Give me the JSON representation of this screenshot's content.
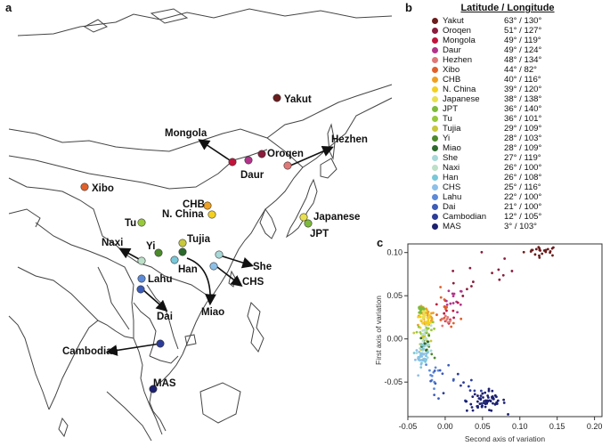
{
  "panels": {
    "a": "a",
    "b": "b",
    "c": "c"
  },
  "map": {
    "labels": {
      "yakut": "Yakut",
      "mongola": "Mongola",
      "daur": "Daur",
      "oroqen": "Oroqen",
      "hezhen": "Hezhen",
      "xibo": "Xibo",
      "chb": "CHB",
      "nchina": "N. China",
      "japanese": "Japanese",
      "jpt": "JPT",
      "tu": "Tu",
      "tujia": "Tujia",
      "yi": "Yi",
      "naxi": "Naxi",
      "han": "Han",
      "she": "She",
      "chs": "CHS",
      "lahu": "Lahu",
      "miao": "Miao",
      "dai": "Dai",
      "cambodian": "Cambodian",
      "mas": "MAS"
    }
  },
  "legend": {
    "title": "Latitude / Longitude",
    "rows": [
      {
        "name": "Yakut",
        "coord": "63° / 130°",
        "color": "#6b1c1c"
      },
      {
        "name": "Oroqen",
        "coord": "51° / 127°",
        "color": "#8a1c3c"
      },
      {
        "name": "Mongola",
        "coord": "49° / 119°",
        "color": "#c0143c"
      },
      {
        "name": "Daur",
        "coord": "49° / 124°",
        "color": "#b2348a"
      },
      {
        "name": "Hezhen",
        "coord": "48° / 134°",
        "color": "#e07878"
      },
      {
        "name": "Xibo",
        "coord": "44° / 82°",
        "color": "#e0602c"
      },
      {
        "name": "CHB",
        "coord": "40° / 116°",
        "color": "#f0a020"
      },
      {
        "name": "N. China",
        "coord": "39° / 120°",
        "color": "#f4d020"
      },
      {
        "name": "Japanese",
        "coord": "38° / 138°",
        "color": "#e8e050"
      },
      {
        "name": "JPT",
        "coord": "36° / 140°",
        "color": "#7cba3c"
      },
      {
        "name": "Tu",
        "coord": "36° / 101°",
        "color": "#98c83c"
      },
      {
        "name": "Tujia",
        "coord": "29° / 109°",
        "color": "#c8c83c"
      },
      {
        "name": "Yi",
        "coord": "28° / 103°",
        "color": "#4c8a2c"
      },
      {
        "name": "Miao",
        "coord": "28° / 109°",
        "color": "#2c6a2c"
      },
      {
        "name": "She",
        "coord": "27° / 119°",
        "color": "#a8d8d8"
      },
      {
        "name": "Naxi",
        "coord": "26° / 100°",
        "color": "#bce0c8"
      },
      {
        "name": "Han",
        "coord": "26° / 108°",
        "color": "#78c8d8"
      },
      {
        "name": "CHS",
        "coord": "25° / 116°",
        "color": "#8cc0e8"
      },
      {
        "name": "Lahu",
        "coord": "22° / 100°",
        "color": "#5c8ad8"
      },
      {
        "name": "Dai",
        "coord": "21° / 100°",
        "color": "#3c5cb8"
      },
      {
        "name": "Cambodian",
        "coord": "12° / 105°",
        "color": "#2c3c98"
      },
      {
        "name": "MAS",
        "coord": "3° / 103°",
        "color": "#1c2070"
      }
    ]
  },
  "chart_data": {
    "type": "scatter",
    "xlabel": "Second axis of variation",
    "ylabel": "First axis of variation",
    "xlim": [
      -0.05,
      0.21
    ],
    "ylim": [
      -0.09,
      0.11
    ],
    "xticks": [
      "-0.05",
      "0.00",
      "0.05",
      "0.10",
      "0.15",
      "0.20"
    ],
    "yticks": [
      "0.10",
      "0.05",
      "0.00",
      "-0.05"
    ],
    "clusters": [
      {
        "group": "Yakut",
        "color": "#6b1c1c",
        "cx": 0.13,
        "cy": 0.102,
        "sx": 0.012,
        "sy": 0.003,
        "n": 22
      },
      {
        "group": "Oroqen",
        "color": "#8a1c3c",
        "cx": 0.06,
        "cy": 0.07,
        "sx": 0.03,
        "sy": 0.015,
        "n": 14
      },
      {
        "group": "Daur",
        "color": "#b2348a",
        "cx": 0.012,
        "cy": 0.045,
        "sx": 0.006,
        "sy": 0.007,
        "n": 14
      },
      {
        "group": "Mongola",
        "color": "#c0143c",
        "cx": 0.005,
        "cy": 0.03,
        "sx": 0.008,
        "sy": 0.008,
        "n": 10
      },
      {
        "group": "Hezhen",
        "color": "#e07878",
        "cx": 0.0,
        "cy": 0.02,
        "sx": 0.004,
        "sy": 0.004,
        "n": 10
      },
      {
        "group": "Xibo",
        "color": "#e0602c",
        "cx": 0.0,
        "cy": 0.03,
        "sx": 0.01,
        "sy": 0.012,
        "n": 12
      },
      {
        "group": "CHB",
        "color": "#f0a020",
        "cx": -0.025,
        "cy": 0.025,
        "sx": 0.006,
        "sy": 0.006,
        "n": 28
      },
      {
        "group": "N. China",
        "color": "#f4d020",
        "cx": -0.027,
        "cy": 0.02,
        "sx": 0.004,
        "sy": 0.005,
        "n": 18
      },
      {
        "group": "Japanese",
        "color": "#e8e050",
        "cx": -0.03,
        "cy": 0.03,
        "sx": 0.003,
        "sy": 0.004,
        "n": 14
      },
      {
        "group": "JPT",
        "color": "#7cba3c",
        "cx": -0.032,
        "cy": 0.034,
        "sx": 0.003,
        "sy": 0.003,
        "n": 16
      },
      {
        "group": "Tu",
        "color": "#98c83c",
        "cx": -0.025,
        "cy": 0.012,
        "sx": 0.006,
        "sy": 0.005,
        "n": 14
      },
      {
        "group": "Tujia",
        "color": "#c8c83c",
        "cx": -0.028,
        "cy": 0.0,
        "sx": 0.004,
        "sy": 0.006,
        "n": 14
      },
      {
        "group": "Yi",
        "color": "#4c8a2c",
        "cx": -0.025,
        "cy": -0.01,
        "sx": 0.004,
        "sy": 0.006,
        "n": 12
      },
      {
        "group": "Miao",
        "color": "#2c6a2c",
        "cx": -0.027,
        "cy": -0.005,
        "sx": 0.003,
        "sy": 0.005,
        "n": 10
      },
      {
        "group": "She",
        "color": "#a8d8d8",
        "cx": -0.03,
        "cy": -0.012,
        "sx": 0.004,
        "sy": 0.006,
        "n": 16
      },
      {
        "group": "Naxi",
        "color": "#bce0c8",
        "cx": -0.027,
        "cy": 0.005,
        "sx": 0.004,
        "sy": 0.006,
        "n": 14
      },
      {
        "group": "Han",
        "color": "#78c8d8",
        "cx": -0.03,
        "cy": -0.018,
        "sx": 0.004,
        "sy": 0.007,
        "n": 18
      },
      {
        "group": "CHS",
        "color": "#8cc0e8",
        "cx": -0.032,
        "cy": -0.022,
        "sx": 0.004,
        "sy": 0.006,
        "n": 18
      },
      {
        "group": "Lahu",
        "color": "#5c8ad8",
        "cx": -0.015,
        "cy": -0.04,
        "sx": 0.006,
        "sy": 0.008,
        "n": 10
      },
      {
        "group": "Dai",
        "color": "#3c5cb8",
        "cx": -0.005,
        "cy": -0.048,
        "sx": 0.01,
        "sy": 0.008,
        "n": 10
      },
      {
        "group": "Cambodian",
        "color": "#2c3c98",
        "cx": 0.03,
        "cy": -0.06,
        "sx": 0.02,
        "sy": 0.01,
        "n": 12
      },
      {
        "group": "MAS",
        "color": "#1c2070",
        "cx": 0.055,
        "cy": -0.072,
        "sx": 0.013,
        "sy": 0.006,
        "n": 60
      }
    ]
  }
}
